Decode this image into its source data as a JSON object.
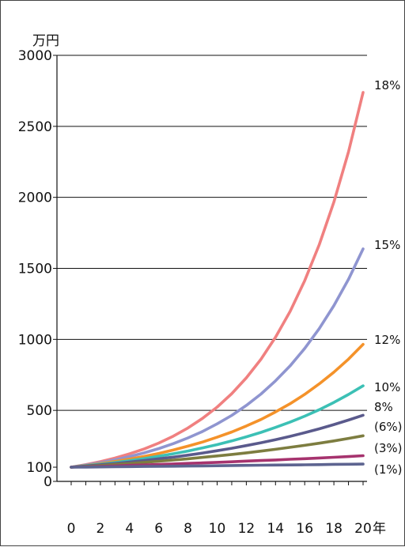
{
  "chart_data": {
    "type": "line",
    "y_unit": "万円",
    "x_unit": "年",
    "x": [
      0,
      1,
      2,
      3,
      4,
      5,
      6,
      7,
      8,
      9,
      10,
      11,
      12,
      13,
      14,
      15,
      16,
      17,
      18,
      19,
      20
    ],
    "x_ticks": [
      "0",
      "2",
      "4",
      "6",
      "8",
      "10",
      "12",
      "14",
      "16",
      "18",
      "20"
    ],
    "y_ticks": [
      "0",
      "100",
      "500",
      "1000",
      "1500",
      "2000",
      "2500",
      "3000"
    ],
    "ylim": [
      0,
      3000
    ],
    "xlim": [
      0,
      20
    ],
    "grid": "horizontal at 500, 1000, 1500, 2000, 2500, 3000",
    "series": [
      {
        "name": "18%",
        "color": "#f08080",
        "values": [
          100,
          118,
          139,
          164,
          194,
          229,
          270,
          319,
          376,
          444,
          523,
          618,
          729,
          860,
          1015,
          1197,
          1413,
          1667,
          1967,
          2321,
          2739
        ]
      },
      {
        "name": "15%",
        "color": "#8f95d0",
        "values": [
          100,
          115,
          132,
          152,
          175,
          201,
          231,
          266,
          306,
          352,
          405,
          465,
          535,
          615,
          708,
          814,
          936,
          1076,
          1238,
          1423,
          1637
        ]
      },
      {
        "name": "12%",
        "color": "#f4922a",
        "values": [
          100,
          112,
          125,
          140,
          157,
          176,
          197,
          221,
          248,
          277,
          311,
          348,
          390,
          436,
          489,
          547,
          613,
          687,
          769,
          861,
          965
        ]
      },
      {
        "name": "10%",
        "color": "#3cc0b5",
        "values": [
          100,
          110,
          121,
          133,
          146,
          161,
          177,
          195,
          214,
          236,
          259,
          285,
          314,
          345,
          380,
          418,
          459,
          505,
          556,
          612,
          673
        ]
      },
      {
        "name": "8%",
        "color": "#5a5a8c",
        "values": [
          100,
          108,
          117,
          126,
          136,
          147,
          159,
          171,
          185,
          200,
          216,
          233,
          252,
          272,
          294,
          317,
          343,
          370,
          400,
          432,
          466
        ]
      },
      {
        "name": "(6%)",
        "color": "#7d7d40",
        "values": [
          100,
          106,
          112,
          119,
          126,
          134,
          142,
          150,
          159,
          169,
          179,
          190,
          201,
          213,
          226,
          240,
          254,
          269,
          285,
          303,
          321
        ]
      },
      {
        "name": "(3%)",
        "color": "#a6336e",
        "values": [
          100,
          103,
          106,
          109,
          113,
          116,
          119,
          123,
          127,
          130,
          134,
          138,
          143,
          147,
          151,
          156,
          160,
          165,
          170,
          175,
          181
        ]
      },
      {
        "name": "(1%)",
        "color": "#5d6490",
        "values": [
          100,
          101,
          102,
          103,
          104,
          105,
          106,
          107,
          108,
          109,
          110,
          112,
          113,
          114,
          115,
          116,
          117,
          118,
          120,
          121,
          122
        ]
      }
    ]
  }
}
